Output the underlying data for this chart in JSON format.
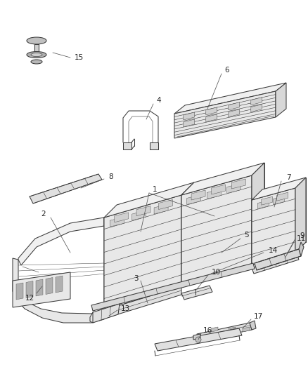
{
  "background_color": "#ffffff",
  "fig_width": 4.38,
  "fig_height": 5.33,
  "dpi": 100,
  "line_color": "#3a3a3a",
  "label_color": "#222222",
  "label_fontsize": 7.5,
  "line_width": 0.75
}
